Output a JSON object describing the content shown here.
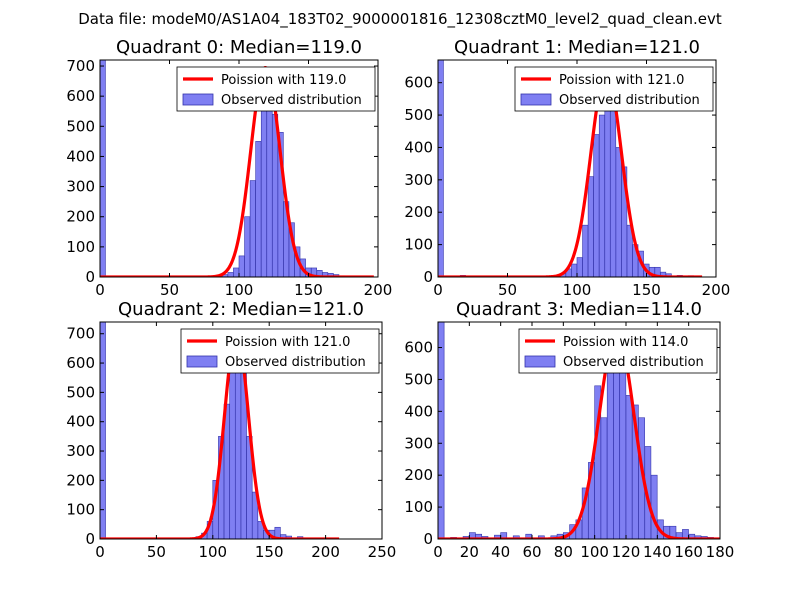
{
  "figure": {
    "suptitle": "Data file: modeM0/AS1A04_183T02_9000001816_12308cztM0_level2_quad_clean.evt"
  },
  "colors": {
    "bar_fill": "#7f7ff2",
    "bar_edge": "#3333aa",
    "fit_line": "#ff0000",
    "axis": "#000000"
  },
  "chart_data": [
    {
      "type": "bar",
      "panel": "top-left",
      "title": "Quadrant 0: Median=119.0",
      "median": 119.0,
      "xlim": [
        0,
        200
      ],
      "ylim": [
        0,
        720
      ],
      "xticks": [
        0,
        50,
        100,
        150,
        200
      ],
      "yticks": [
        0,
        100,
        200,
        300,
        400,
        500,
        600,
        700
      ],
      "legend": {
        "position": "top-right",
        "line_label": "Poission with 119.0",
        "bar_label": "Observed distribution"
      },
      "bins": [
        {
          "x": 0,
          "w": 3.9,
          "h": 720
        },
        {
          "x": 84,
          "w": 3.9,
          "h": 5
        },
        {
          "x": 88,
          "w": 3.9,
          "h": 8
        },
        {
          "x": 92,
          "w": 3.9,
          "h": 15
        },
        {
          "x": 96,
          "w": 3.9,
          "h": 30
        },
        {
          "x": 100,
          "w": 3.9,
          "h": 70
        },
        {
          "x": 104,
          "w": 3.9,
          "h": 200
        },
        {
          "x": 108,
          "w": 3.9,
          "h": 320
        },
        {
          "x": 112,
          "w": 3.9,
          "h": 450
        },
        {
          "x": 116,
          "w": 3.9,
          "h": 600
        },
        {
          "x": 120,
          "w": 3.9,
          "h": 560
        },
        {
          "x": 124,
          "w": 3.9,
          "h": 540
        },
        {
          "x": 128,
          "w": 3.9,
          "h": 480
        },
        {
          "x": 132,
          "w": 3.9,
          "h": 250
        },
        {
          "x": 136,
          "w": 3.9,
          "h": 180
        },
        {
          "x": 140,
          "w": 3.9,
          "h": 100
        },
        {
          "x": 144,
          "w": 3.9,
          "h": 60
        },
        {
          "x": 148,
          "w": 3.9,
          "h": 30
        },
        {
          "x": 152,
          "w": 3.9,
          "h": 30
        },
        {
          "x": 156,
          "w": 3.9,
          "h": 22
        },
        {
          "x": 160,
          "w": 3.9,
          "h": 15
        },
        {
          "x": 164,
          "w": 3.9,
          "h": 12
        },
        {
          "x": 168,
          "w": 3.9,
          "h": 8
        },
        {
          "x": 172,
          "w": 3.9,
          "h": 4
        }
      ],
      "fit": {
        "x_range": [
          0,
          197
        ],
        "peak": 695,
        "sigma": 10.5
      }
    },
    {
      "type": "bar",
      "panel": "top-right",
      "title": "Quadrant 1: Median=121.0",
      "median": 121.0,
      "xlim": [
        0,
        200
      ],
      "ylim": [
        0,
        670
      ],
      "xticks": [
        0,
        50,
        100,
        150,
        200
      ],
      "yticks": [
        0,
        100,
        200,
        300,
        400,
        500,
        600
      ],
      "legend": {
        "position": "top-right",
        "line_label": "Poission with 121.0",
        "bar_label": "Observed distribution"
      },
      "bins": [
        {
          "x": 0,
          "w": 3.9,
          "h": 670
        },
        {
          "x": 16,
          "w": 3.9,
          "h": 5
        },
        {
          "x": 84,
          "w": 3.9,
          "h": 5
        },
        {
          "x": 88,
          "w": 3.9,
          "h": 10
        },
        {
          "x": 92,
          "w": 3.9,
          "h": 25
        },
        {
          "x": 96,
          "w": 3.9,
          "h": 40
        },
        {
          "x": 100,
          "w": 3.9,
          "h": 60
        },
        {
          "x": 104,
          "w": 3.9,
          "h": 160
        },
        {
          "x": 108,
          "w": 3.9,
          "h": 310
        },
        {
          "x": 112,
          "w": 3.9,
          "h": 440
        },
        {
          "x": 116,
          "w": 3.9,
          "h": 500
        },
        {
          "x": 120,
          "w": 3.9,
          "h": 620
        },
        {
          "x": 124,
          "w": 3.9,
          "h": 560
        },
        {
          "x": 128,
          "w": 3.9,
          "h": 400
        },
        {
          "x": 132,
          "w": 3.9,
          "h": 340
        },
        {
          "x": 136,
          "w": 3.9,
          "h": 160
        },
        {
          "x": 140,
          "w": 3.9,
          "h": 100
        },
        {
          "x": 144,
          "w": 3.9,
          "h": 80
        },
        {
          "x": 148,
          "w": 3.9,
          "h": 40
        },
        {
          "x": 152,
          "w": 3.9,
          "h": 30
        },
        {
          "x": 156,
          "w": 3.9,
          "h": 30
        },
        {
          "x": 160,
          "w": 3.9,
          "h": 15
        },
        {
          "x": 164,
          "w": 3.9,
          "h": 10
        },
        {
          "x": 172,
          "w": 3.9,
          "h": 5
        },
        {
          "x": 180,
          "w": 3.9,
          "h": 4
        }
      ],
      "fit": {
        "x_range": [
          0,
          190
        ],
        "peak": 632,
        "sigma": 11
      }
    },
    {
      "type": "bar",
      "panel": "bottom-left",
      "title": "Quadrant 2: Median=121.0",
      "median": 121.0,
      "xlim": [
        0,
        250
      ],
      "ylim": [
        0,
        740
      ],
      "xticks": [
        0,
        50,
        100,
        150,
        200,
        250
      ],
      "yticks": [
        0,
        100,
        200,
        300,
        400,
        500,
        600,
        700
      ],
      "legend": {
        "position": "top-right",
        "line_label": "Poission with 121.0",
        "bar_label": "Observed distribution"
      },
      "bins": [
        {
          "x": 0,
          "w": 4.9,
          "h": 740
        },
        {
          "x": 85,
          "w": 4.9,
          "h": 8
        },
        {
          "x": 90,
          "w": 4.9,
          "h": 20
        },
        {
          "x": 95,
          "w": 4.9,
          "h": 60
        },
        {
          "x": 100,
          "w": 4.9,
          "h": 200
        },
        {
          "x": 105,
          "w": 4.9,
          "h": 350
        },
        {
          "x": 110,
          "w": 4.9,
          "h": 460
        },
        {
          "x": 115,
          "w": 4.9,
          "h": 620
        },
        {
          "x": 120,
          "w": 4.9,
          "h": 700
        },
        {
          "x": 125,
          "w": 4.9,
          "h": 580
        },
        {
          "x": 130,
          "w": 4.9,
          "h": 350
        },
        {
          "x": 135,
          "w": 4.9,
          "h": 160
        },
        {
          "x": 140,
          "w": 4.9,
          "h": 60
        },
        {
          "x": 145,
          "w": 4.9,
          "h": 30
        },
        {
          "x": 150,
          "w": 4.9,
          "h": 30
        },
        {
          "x": 155,
          "w": 4.9,
          "h": 40
        },
        {
          "x": 160,
          "w": 4.9,
          "h": 15
        },
        {
          "x": 165,
          "w": 4.9,
          "h": 10
        },
        {
          "x": 175,
          "w": 4.9,
          "h": 8
        }
      ],
      "fit": {
        "x_range": [
          0,
          212
        ],
        "peak": 705,
        "sigma": 10.5
      }
    },
    {
      "type": "bar",
      "panel": "bottom-right",
      "title": "Quadrant 3: Median=114.0",
      "median": 114.0,
      "xlim": [
        0,
        180
      ],
      "ylim": [
        0,
        680
      ],
      "xticks": [
        0,
        20,
        40,
        60,
        80,
        100,
        120,
        140,
        160,
        180
      ],
      "yticks": [
        0,
        100,
        200,
        300,
        400,
        500,
        600
      ],
      "legend": {
        "position": "top-right",
        "line_label": "Poission with 114.0",
        "bar_label": "Observed distribution"
      },
      "bins": [
        {
          "x": 0,
          "w": 3.9,
          "h": 680
        },
        {
          "x": 8,
          "w": 3.9,
          "h": 5
        },
        {
          "x": 16,
          "w": 3.9,
          "h": 8
        },
        {
          "x": 20,
          "w": 3.9,
          "h": 20
        },
        {
          "x": 24,
          "w": 3.9,
          "h": 15
        },
        {
          "x": 28,
          "w": 3.9,
          "h": 8
        },
        {
          "x": 36,
          "w": 3.9,
          "h": 12
        },
        {
          "x": 40,
          "w": 3.9,
          "h": 20
        },
        {
          "x": 48,
          "w": 3.9,
          "h": 10
        },
        {
          "x": 56,
          "w": 3.9,
          "h": 15
        },
        {
          "x": 64,
          "w": 3.9,
          "h": 10
        },
        {
          "x": 72,
          "w": 3.9,
          "h": 10
        },
        {
          "x": 76,
          "w": 3.9,
          "h": 15
        },
        {
          "x": 80,
          "w": 3.9,
          "h": 20
        },
        {
          "x": 84,
          "w": 3.9,
          "h": 45
        },
        {
          "x": 88,
          "w": 3.9,
          "h": 60
        },
        {
          "x": 92,
          "w": 3.9,
          "h": 160
        },
        {
          "x": 96,
          "w": 3.9,
          "h": 240
        },
        {
          "x": 100,
          "w": 3.9,
          "h": 480
        },
        {
          "x": 104,
          "w": 3.9,
          "h": 380
        },
        {
          "x": 108,
          "w": 3.9,
          "h": 620
        },
        {
          "x": 112,
          "w": 3.9,
          "h": 560
        },
        {
          "x": 116,
          "w": 3.9,
          "h": 650
        },
        {
          "x": 120,
          "w": 3.9,
          "h": 450
        },
        {
          "x": 124,
          "w": 3.9,
          "h": 420
        },
        {
          "x": 128,
          "w": 3.9,
          "h": 380
        },
        {
          "x": 132,
          "w": 3.9,
          "h": 290
        },
        {
          "x": 136,
          "w": 3.9,
          "h": 200
        },
        {
          "x": 140,
          "w": 3.9,
          "h": 60
        },
        {
          "x": 144,
          "w": 3.9,
          "h": 40
        },
        {
          "x": 148,
          "w": 3.9,
          "h": 40
        },
        {
          "x": 152,
          "w": 3.9,
          "h": 20
        },
        {
          "x": 156,
          "w": 3.9,
          "h": 30
        },
        {
          "x": 160,
          "w": 3.9,
          "h": 15
        },
        {
          "x": 164,
          "w": 3.9,
          "h": 10
        },
        {
          "x": 168,
          "w": 3.9,
          "h": 8
        },
        {
          "x": 172,
          "w": 3.9,
          "h": 5
        }
      ],
      "fit": {
        "x_range": [
          0,
          180
        ],
        "peak": 648,
        "sigma": 11
      }
    }
  ]
}
